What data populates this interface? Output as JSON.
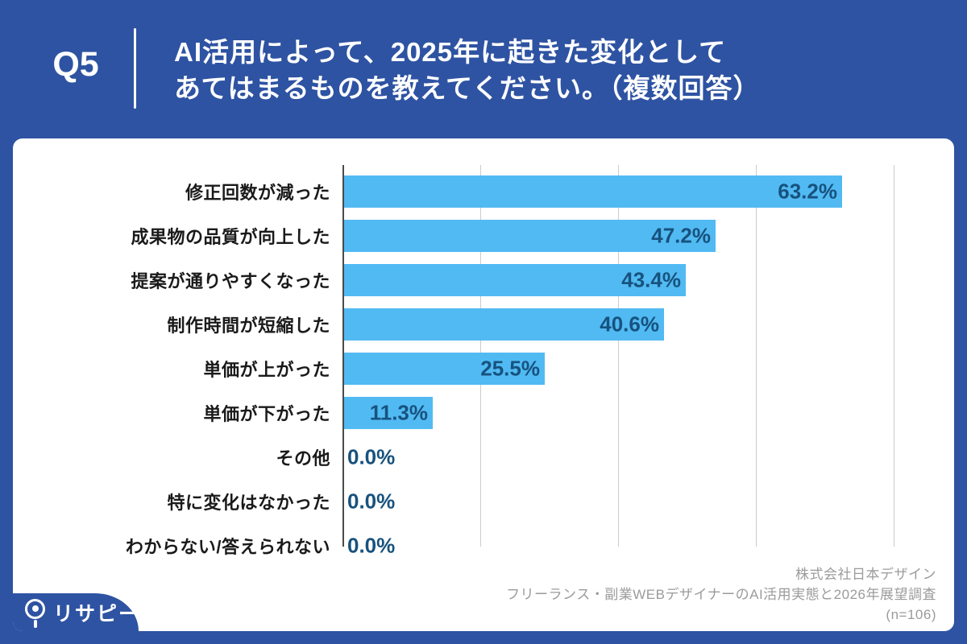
{
  "header": {
    "question_number": "Q5",
    "title_line1": "AI活用によって、2025年に起きた変化として",
    "title_line2": "あてはまるものを教えてください。（複数回答）"
  },
  "chart_data": {
    "type": "bar",
    "orientation": "horizontal",
    "title": "AI活用によって、2025年に起きた変化としてあてはまるものを教えてください。（複数回答）",
    "categories": [
      "修正回数が減った",
      "成果物の品質が向上した",
      "提案が通りやすくなった",
      "制作時間が短縮した",
      "単価が上がった",
      "単価が下がった",
      "その他",
      "特に変化はなかった",
      "わからない/答えられない"
    ],
    "values": [
      63.2,
      47.2,
      43.4,
      40.6,
      25.5,
      11.3,
      0.0,
      0.0,
      0.0
    ],
    "value_labels": [
      "63.2%",
      "47.2%",
      "43.4%",
      "40.6%",
      "25.5%",
      "11.3%",
      "0.0%",
      "0.0%",
      "0.0%"
    ],
    "xlabel": "",
    "ylabel": "",
    "xlim": [
      0,
      70
    ],
    "gridline_step": 17.5,
    "grid": true,
    "legend": false,
    "bar_color": "#51BAF3",
    "value_text_color": "#17527E"
  },
  "footer": {
    "company": "株式会社日本デザイン",
    "survey_title": "フリーランス・副業WEBデザイナーのAI活用実態と2026年展望調査",
    "sample_size": "(n=106)"
  },
  "logo": {
    "name": "リサピー",
    "icon": "magnifier-icon"
  },
  "colors": {
    "background": "#2E53A2",
    "card": "#FFFFFF",
    "bar": "#51BAF3",
    "value_text": "#17527E",
    "category_text": "#1A1A1A",
    "gridline": "#CBCBCB",
    "axis_line": "#4A4A4A",
    "footer_text": "#9B9B9B",
    "title_text": "#FFFFFF"
  }
}
